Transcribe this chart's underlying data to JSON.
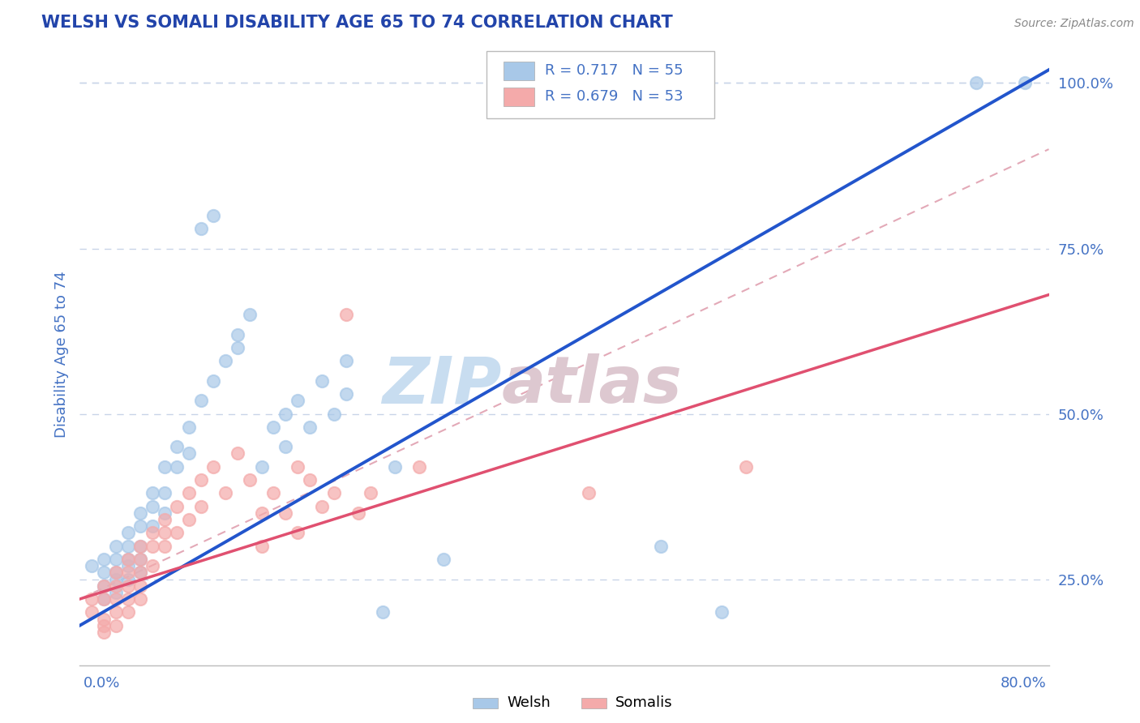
{
  "title": "WELSH VS SOMALI DISABILITY AGE 65 TO 74 CORRELATION CHART",
  "source": "Source: ZipAtlas.com",
  "ylabel": "Disability Age 65 to 74",
  "yticks": [
    0.25,
    0.5,
    0.75,
    1.0
  ],
  "ytick_labels": [
    "25.0%",
    "50.0%",
    "75.0%",
    "100.0%"
  ],
  "xlim": [
    0.0,
    0.8
  ],
  "ylim": [
    0.12,
    1.06
  ],
  "welsh_R": 0.717,
  "welsh_N": 55,
  "somali_R": 0.679,
  "somali_N": 53,
  "welsh_color": "#a8c8e8",
  "somali_color": "#f4aaaa",
  "welsh_trend_color": "#2255cc",
  "somali_trend_color": "#e05070",
  "ref_line_color": "#e0a0b0",
  "title_color": "#2244aa",
  "axis_color": "#4472c4",
  "grid_color": "#c8d4e8",
  "watermark_color": "#d8e4f0",
  "welsh_scatter": [
    [
      0.01,
      0.27
    ],
    [
      0.02,
      0.26
    ],
    [
      0.02,
      0.28
    ],
    [
      0.02,
      0.24
    ],
    [
      0.02,
      0.22
    ],
    [
      0.03,
      0.3
    ],
    [
      0.03,
      0.28
    ],
    [
      0.03,
      0.26
    ],
    [
      0.03,
      0.25
    ],
    [
      0.03,
      0.23
    ],
    [
      0.04,
      0.32
    ],
    [
      0.04,
      0.3
    ],
    [
      0.04,
      0.28
    ],
    [
      0.04,
      0.27
    ],
    [
      0.04,
      0.25
    ],
    [
      0.05,
      0.35
    ],
    [
      0.05,
      0.33
    ],
    [
      0.05,
      0.3
    ],
    [
      0.05,
      0.28
    ],
    [
      0.05,
      0.26
    ],
    [
      0.06,
      0.38
    ],
    [
      0.06,
      0.36
    ],
    [
      0.06,
      0.33
    ],
    [
      0.07,
      0.42
    ],
    [
      0.07,
      0.38
    ],
    [
      0.07,
      0.35
    ],
    [
      0.08,
      0.45
    ],
    [
      0.08,
      0.42
    ],
    [
      0.09,
      0.48
    ],
    [
      0.09,
      0.44
    ],
    [
      0.1,
      0.52
    ],
    [
      0.1,
      0.78
    ],
    [
      0.11,
      0.55
    ],
    [
      0.11,
      0.8
    ],
    [
      0.12,
      0.58
    ],
    [
      0.13,
      0.6
    ],
    [
      0.13,
      0.62
    ],
    [
      0.14,
      0.65
    ],
    [
      0.15,
      0.42
    ],
    [
      0.16,
      0.48
    ],
    [
      0.17,
      0.45
    ],
    [
      0.17,
      0.5
    ],
    [
      0.18,
      0.52
    ],
    [
      0.19,
      0.48
    ],
    [
      0.2,
      0.55
    ],
    [
      0.21,
      0.5
    ],
    [
      0.22,
      0.58
    ],
    [
      0.22,
      0.53
    ],
    [
      0.25,
      0.2
    ],
    [
      0.26,
      0.42
    ],
    [
      0.3,
      0.28
    ],
    [
      0.48,
      0.3
    ],
    [
      0.53,
      0.2
    ],
    [
      0.74,
      1.0
    ],
    [
      0.78,
      1.0
    ]
  ],
  "somali_scatter": [
    [
      0.01,
      0.22
    ],
    [
      0.01,
      0.2
    ],
    [
      0.02,
      0.24
    ],
    [
      0.02,
      0.22
    ],
    [
      0.02,
      0.19
    ],
    [
      0.02,
      0.18
    ],
    [
      0.02,
      0.17
    ],
    [
      0.03,
      0.26
    ],
    [
      0.03,
      0.24
    ],
    [
      0.03,
      0.22
    ],
    [
      0.03,
      0.2
    ],
    [
      0.03,
      0.18
    ],
    [
      0.04,
      0.28
    ],
    [
      0.04,
      0.26
    ],
    [
      0.04,
      0.24
    ],
    [
      0.04,
      0.22
    ],
    [
      0.04,
      0.2
    ],
    [
      0.05,
      0.3
    ],
    [
      0.05,
      0.28
    ],
    [
      0.05,
      0.26
    ],
    [
      0.05,
      0.24
    ],
    [
      0.05,
      0.22
    ],
    [
      0.06,
      0.32
    ],
    [
      0.06,
      0.3
    ],
    [
      0.06,
      0.27
    ],
    [
      0.07,
      0.34
    ],
    [
      0.07,
      0.32
    ],
    [
      0.07,
      0.3
    ],
    [
      0.08,
      0.36
    ],
    [
      0.08,
      0.32
    ],
    [
      0.09,
      0.38
    ],
    [
      0.09,
      0.34
    ],
    [
      0.1,
      0.4
    ],
    [
      0.1,
      0.36
    ],
    [
      0.11,
      0.42
    ],
    [
      0.12,
      0.38
    ],
    [
      0.13,
      0.44
    ],
    [
      0.14,
      0.4
    ],
    [
      0.15,
      0.35
    ],
    [
      0.15,
      0.3
    ],
    [
      0.16,
      0.38
    ],
    [
      0.17,
      0.35
    ],
    [
      0.18,
      0.42
    ],
    [
      0.18,
      0.32
    ],
    [
      0.19,
      0.4
    ],
    [
      0.2,
      0.36
    ],
    [
      0.21,
      0.38
    ],
    [
      0.22,
      0.65
    ],
    [
      0.23,
      0.35
    ],
    [
      0.24,
      0.38
    ],
    [
      0.28,
      0.42
    ],
    [
      0.42,
      0.38
    ],
    [
      0.55,
      0.42
    ]
  ],
  "welsh_trend": [
    0.0,
    0.8
  ],
  "welsh_trend_y": [
    0.18,
    1.02
  ],
  "somali_trend": [
    0.0,
    0.8
  ],
  "somali_trend_y": [
    0.22,
    0.68
  ],
  "ref_trend": [
    0.0,
    0.8
  ],
  "ref_trend_y": [
    0.22,
    0.9
  ]
}
